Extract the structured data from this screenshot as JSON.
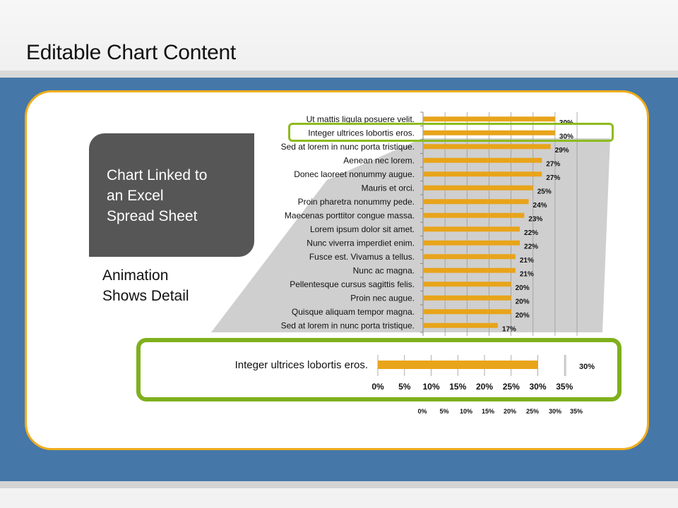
{
  "slide": {
    "title": "Editable Chart Content",
    "callout_text": "Chart Linked to\nan Excel\nSpread Sheet",
    "animation_text": "Animation\nShows Detail"
  },
  "colors": {
    "bar": "#e8a41a",
    "panel_border": "#f0ad1c",
    "highlight": "#8dbb1e",
    "background": "#4577a8"
  },
  "chart_data": [
    {
      "type": "bar",
      "orientation": "horizontal",
      "categories": [
        "Ut mattis ligula posuere velit.",
        "Integer ultrices lobortis eros.",
        "Sed at lorem in nunc porta tristique.",
        "Aenean nec lorem.",
        "Donec laoreet nonummy augue.",
        "Mauris et orci.",
        "Proin pharetra nonummy pede.",
        "Maecenas porttitor congue massa.",
        "Lorem ipsum dolor sit amet.",
        "Nunc viverra imperdiet enim.",
        "Fusce est. Vivamus a tellus.",
        "Nunc ac magna.",
        "Pellentesque cursus sagittis felis.",
        "Proin nec augue.",
        "Quisque aliquam tempor magna.",
        "Sed at lorem in nunc porta tristique."
      ],
      "values": [
        30,
        30,
        29,
        27,
        27,
        25,
        24,
        23,
        22,
        22,
        21,
        21,
        20,
        20,
        20,
        17
      ],
      "data_labels": [
        "30%",
        "30%",
        "29%",
        "27%",
        "27%",
        "25%",
        "24%",
        "23%",
        "22%",
        "22%",
        "21%",
        "21%",
        "20%",
        "20%",
        "20%",
        "17%"
      ],
      "xlim": [
        0,
        35
      ],
      "x_ticks": [
        "0%",
        "5%",
        "10%",
        "15%",
        "20%",
        "25%",
        "30%",
        "35%"
      ],
      "highlighted_category": "Integer ultrices lobortis eros.",
      "grid": true
    },
    {
      "type": "bar",
      "orientation": "horizontal",
      "categories": [
        "Integer ultrices lobortis eros."
      ],
      "values": [
        30
      ],
      "data_labels": [
        "30%"
      ],
      "xlim": [
        0,
        35
      ],
      "x_ticks": [
        "0%",
        "5%",
        "10%",
        "15%",
        "20%",
        "25%",
        "30%",
        "35%"
      ],
      "grid": true
    }
  ]
}
